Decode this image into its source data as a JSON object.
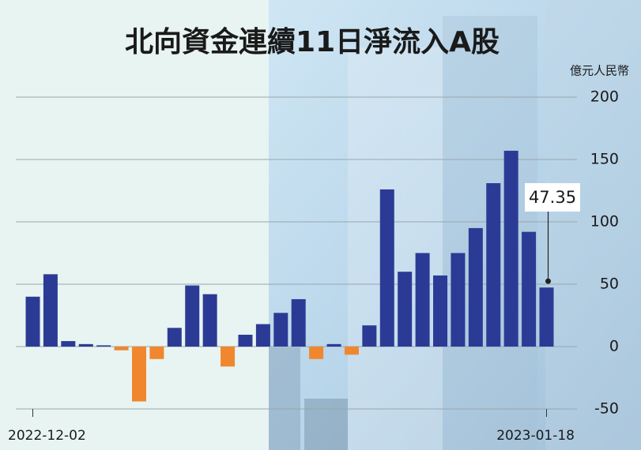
{
  "chart_data": {
    "type": "bar",
    "title": "北向資金連續11日淨流入A股",
    "y_label": "億元人民幣",
    "categories": [
      "2022-12-02",
      null,
      null,
      null,
      null,
      null,
      null,
      null,
      null,
      null,
      null,
      null,
      null,
      null,
      null,
      null,
      null,
      null,
      null,
      null,
      null,
      null,
      null,
      null,
      null,
      null,
      null,
      null,
      null,
      "2023-01-18"
    ],
    "values": [
      40,
      58,
      4.4,
      2,
      1,
      -3,
      -44,
      -10,
      15,
      49,
      42,
      -16,
      9.5,
      18,
      27,
      38,
      -10,
      2,
      -6.5,
      17,
      126,
      60,
      75,
      57,
      75,
      95,
      131,
      157,
      92,
      47.35
    ],
    "color": "#2b3b95",
    "negative_color": "#f0872e",
    "ylim": [
      -50,
      200
    ],
    "yticks": [
      -50,
      0,
      50,
      100,
      150,
      200
    ],
    "grid": true
  }
}
